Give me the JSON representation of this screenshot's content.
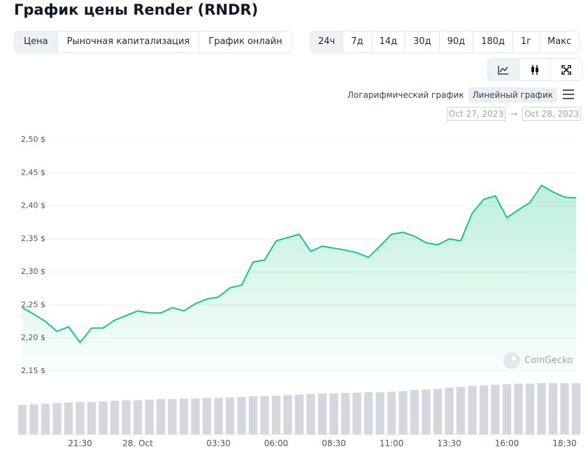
{
  "title": "График цены Render (RNDR)",
  "tabs": [
    "Цена",
    "Рыночная капитализация",
    "График онлайн"
  ],
  "periods": [
    "24ч",
    "7д",
    "14д",
    "30д",
    "90д",
    "180д",
    "1г",
    "Макс"
  ],
  "scale_options": [
    "Логарифмический график",
    "Линейный график"
  ],
  "date_range": {
    "from": "Oct 27, 2023",
    "separator": "→",
    "to": "Oct 28, 2023"
  },
  "watermark": "CoinGecko",
  "chart_data": {
    "type": "line",
    "categories": [
      null,
      null,
      null,
      null,
      null,
      "21:30",
      null,
      null,
      null,
      null,
      "28. Oct",
      null,
      null,
      null,
      null,
      null,
      null,
      "03:30",
      null,
      null,
      null,
      null,
      "06:00",
      null,
      null,
      null,
      null,
      "08:30",
      null,
      null,
      null,
      null,
      "11:00",
      null,
      null,
      null,
      null,
      "13:30",
      null,
      null,
      null,
      null,
      "16:00",
      null,
      null,
      null,
      null,
      "18:30",
      null
    ],
    "series": [
      {
        "color": "#16c784",
        "values": [
          2.246,
          2.236,
          2.225,
          2.21,
          2.217,
          2.193,
          2.215,
          2.215,
          2.227,
          2.234,
          2.241,
          2.238,
          2.238,
          2.246,
          2.241,
          2.252,
          2.259,
          2.262,
          2.276,
          2.28,
          2.315,
          2.318,
          2.347,
          2.352,
          2.357,
          2.331,
          2.339,
          2.336,
          2.333,
          2.329,
          2.322,
          2.339,
          2.357,
          2.36,
          2.354,
          2.344,
          2.341,
          2.35,
          2.347,
          2.389,
          2.41,
          2.415,
          2.382,
          2.394,
          2.405,
          2.431,
          2.421,
          2.413,
          2.412
        ]
      },
      {
        "type": "bar",
        "axis": "y2",
        "color": "#d4d7dd",
        "values": [
          52,
          53,
          54,
          55,
          56,
          57,
          57,
          58,
          59,
          60,
          60,
          61,
          62,
          62,
          63,
          63,
          64,
          64,
          65,
          66,
          67,
          67,
          68,
          69,
          70,
          71,
          72,
          72,
          73,
          73,
          74,
          74,
          75,
          76,
          78,
          79,
          80,
          82,
          83,
          85,
          86,
          87,
          88,
          89,
          89,
          90,
          90,
          90,
          90
        ]
      }
    ],
    "ylim": [
      2.15,
      2.5
    ],
    "yticks": [
      {
        "value": 2.15,
        "label": "2,15 $"
      },
      {
        "value": 2.2,
        "label": "2,20 $"
      },
      {
        "value": 2.25,
        "label": "2,25 $"
      },
      {
        "value": 2.3,
        "label": "2,30 $"
      },
      {
        "value": 2.35,
        "label": "2,35 $"
      },
      {
        "value": 2.4,
        "label": "2,40 $"
      },
      {
        "value": 2.45,
        "label": "2,45 $"
      },
      {
        "value": 2.5,
        "label": "2,50 $"
      }
    ],
    "y2lim": [
      0,
      100
    ],
    "grid": true
  }
}
